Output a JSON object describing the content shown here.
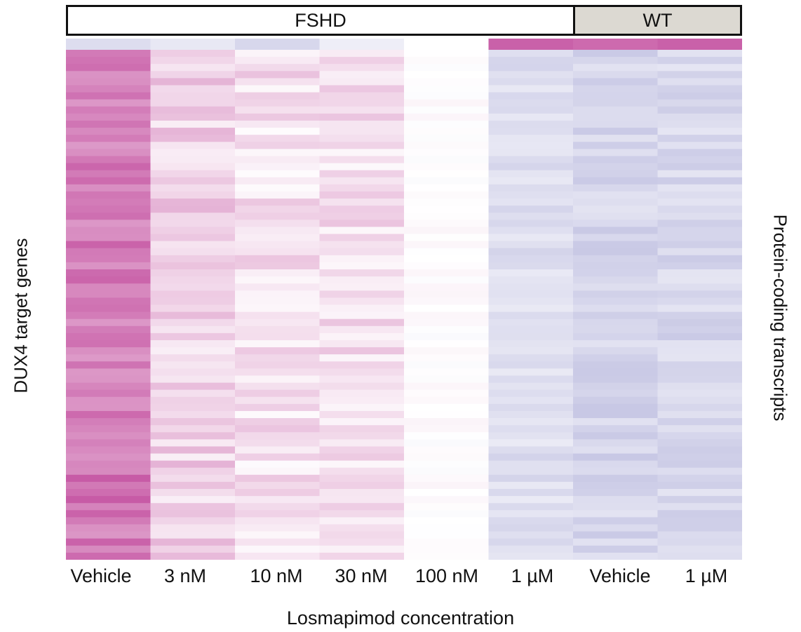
{
  "chart_data": {
    "type": "heatmap",
    "title": "",
    "xlabel": "Losmapimod concentration",
    "ylabel": "DUX4 target genes",
    "side_label": "Protein-coding transcripts",
    "groups": [
      {
        "name": "FSHD",
        "span": 6
      },
      {
        "name": "WT",
        "span": 2
      }
    ],
    "categories": [
      "Vehicle",
      "3 nM",
      "10 nM",
      "30 nM",
      "100 nM",
      "1 µM",
      "Vehicle",
      "1 µM"
    ],
    "colors": {
      "high": "#c0459a",
      "neutral": "#ffffff",
      "low": "#8c8cc8"
    },
    "value_range": [
      -1,
      1
    ],
    "column_profiles": [
      {
        "base": 0.72,
        "variation": 0.18
      },
      {
        "base": 0.25,
        "variation": 0.16
      },
      {
        "base": 0.18,
        "variation": 0.16
      },
      {
        "base": 0.18,
        "variation": 0.14
      },
      {
        "base": 0.01,
        "variation": 0.05
      },
      {
        "base": -0.28,
        "variation": 0.1
      },
      {
        "base": -0.36,
        "variation": 0.12
      },
      {
        "base": -0.34,
        "variation": 0.12
      }
    ],
    "header_row": [
      -0.3,
      -0.2,
      -0.35,
      -0.15,
      0.0,
      0.85,
      0.8,
      0.85
    ],
    "row_count": 72
  }
}
